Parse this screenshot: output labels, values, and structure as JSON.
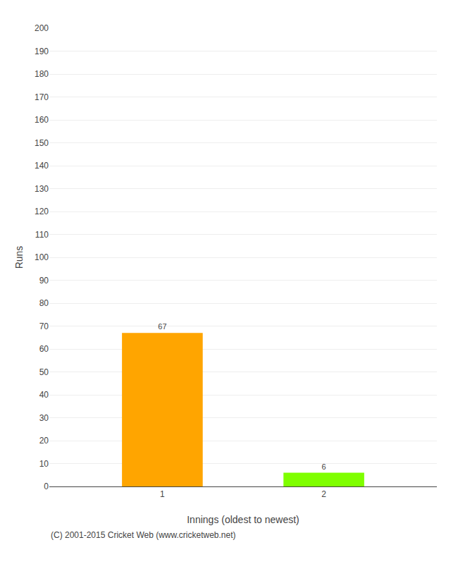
{
  "chart_data": {
    "type": "bar",
    "categories": [
      "1",
      "2"
    ],
    "values": [
      67,
      6
    ],
    "colors": [
      "#ffa500",
      "#7fff00"
    ],
    "xlabel": "Innings (oldest to newest)",
    "ylabel": "Runs",
    "ylim": [
      0,
      200
    ],
    "yticks": [
      0,
      10,
      20,
      30,
      40,
      50,
      60,
      70,
      80,
      90,
      100,
      110,
      120,
      130,
      140,
      150,
      160,
      170,
      180,
      190,
      200
    ],
    "grid": true,
    "data_labels": true,
    "annotations": [
      "(C) 2001-2015 Cricket Web (www.cricketweb.net)"
    ]
  }
}
